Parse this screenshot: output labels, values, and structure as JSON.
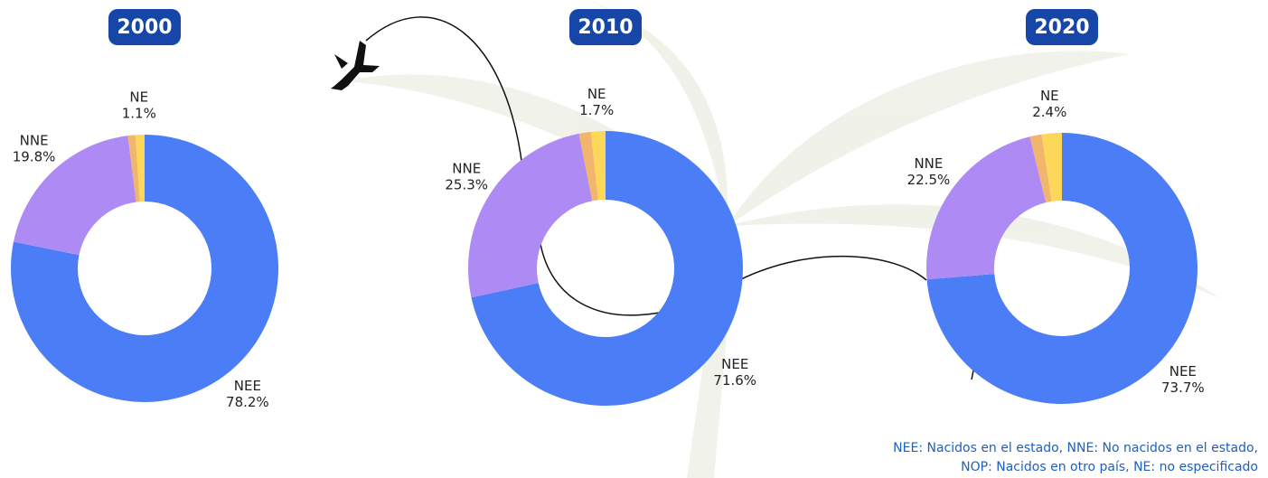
{
  "chart_data": [
    {
      "type": "donut",
      "title": "2000",
      "categories": [
        "NEE",
        "NNE",
        null,
        "NE"
      ],
      "values": [
        78.2,
        19.8,
        0.9,
        1.1
      ],
      "value_labels": [
        "78.2%",
        "19.8%",
        null,
        "1.1%"
      ],
      "colors": [
        "#4b7ef6",
        "#ae8bf4",
        "#f2b56c",
        "#fdd75a"
      ]
    },
    {
      "type": "donut",
      "title": "2010",
      "categories": [
        "NEE",
        "NNE",
        null,
        "NE"
      ],
      "values": [
        71.6,
        25.3,
        1.4,
        1.7
      ],
      "value_labels": [
        "71.6%",
        "25.3%",
        null,
        "1.7%"
      ],
      "colors": [
        "#4b7ef6",
        "#ae8bf4",
        "#f2b56c",
        "#fdd75a"
      ]
    },
    {
      "type": "donut",
      "title": "2020",
      "categories": [
        "NEE",
        "NNE",
        null,
        "NE"
      ],
      "values": [
        73.7,
        22.5,
        1.4,
        2.4
      ],
      "value_labels": [
        "73.7%",
        "22.5%",
        null,
        "2.4%"
      ],
      "colors": [
        "#4b7ef6",
        "#ae8bf4",
        "#f2b56c",
        "#fdd75a"
      ]
    }
  ],
  "footnote": [
    "NEE: Nacidos en el estado, NNE: No nacidos en el estado,",
    "NOP: Nacidos en otro país, NE: no especificado"
  ]
}
